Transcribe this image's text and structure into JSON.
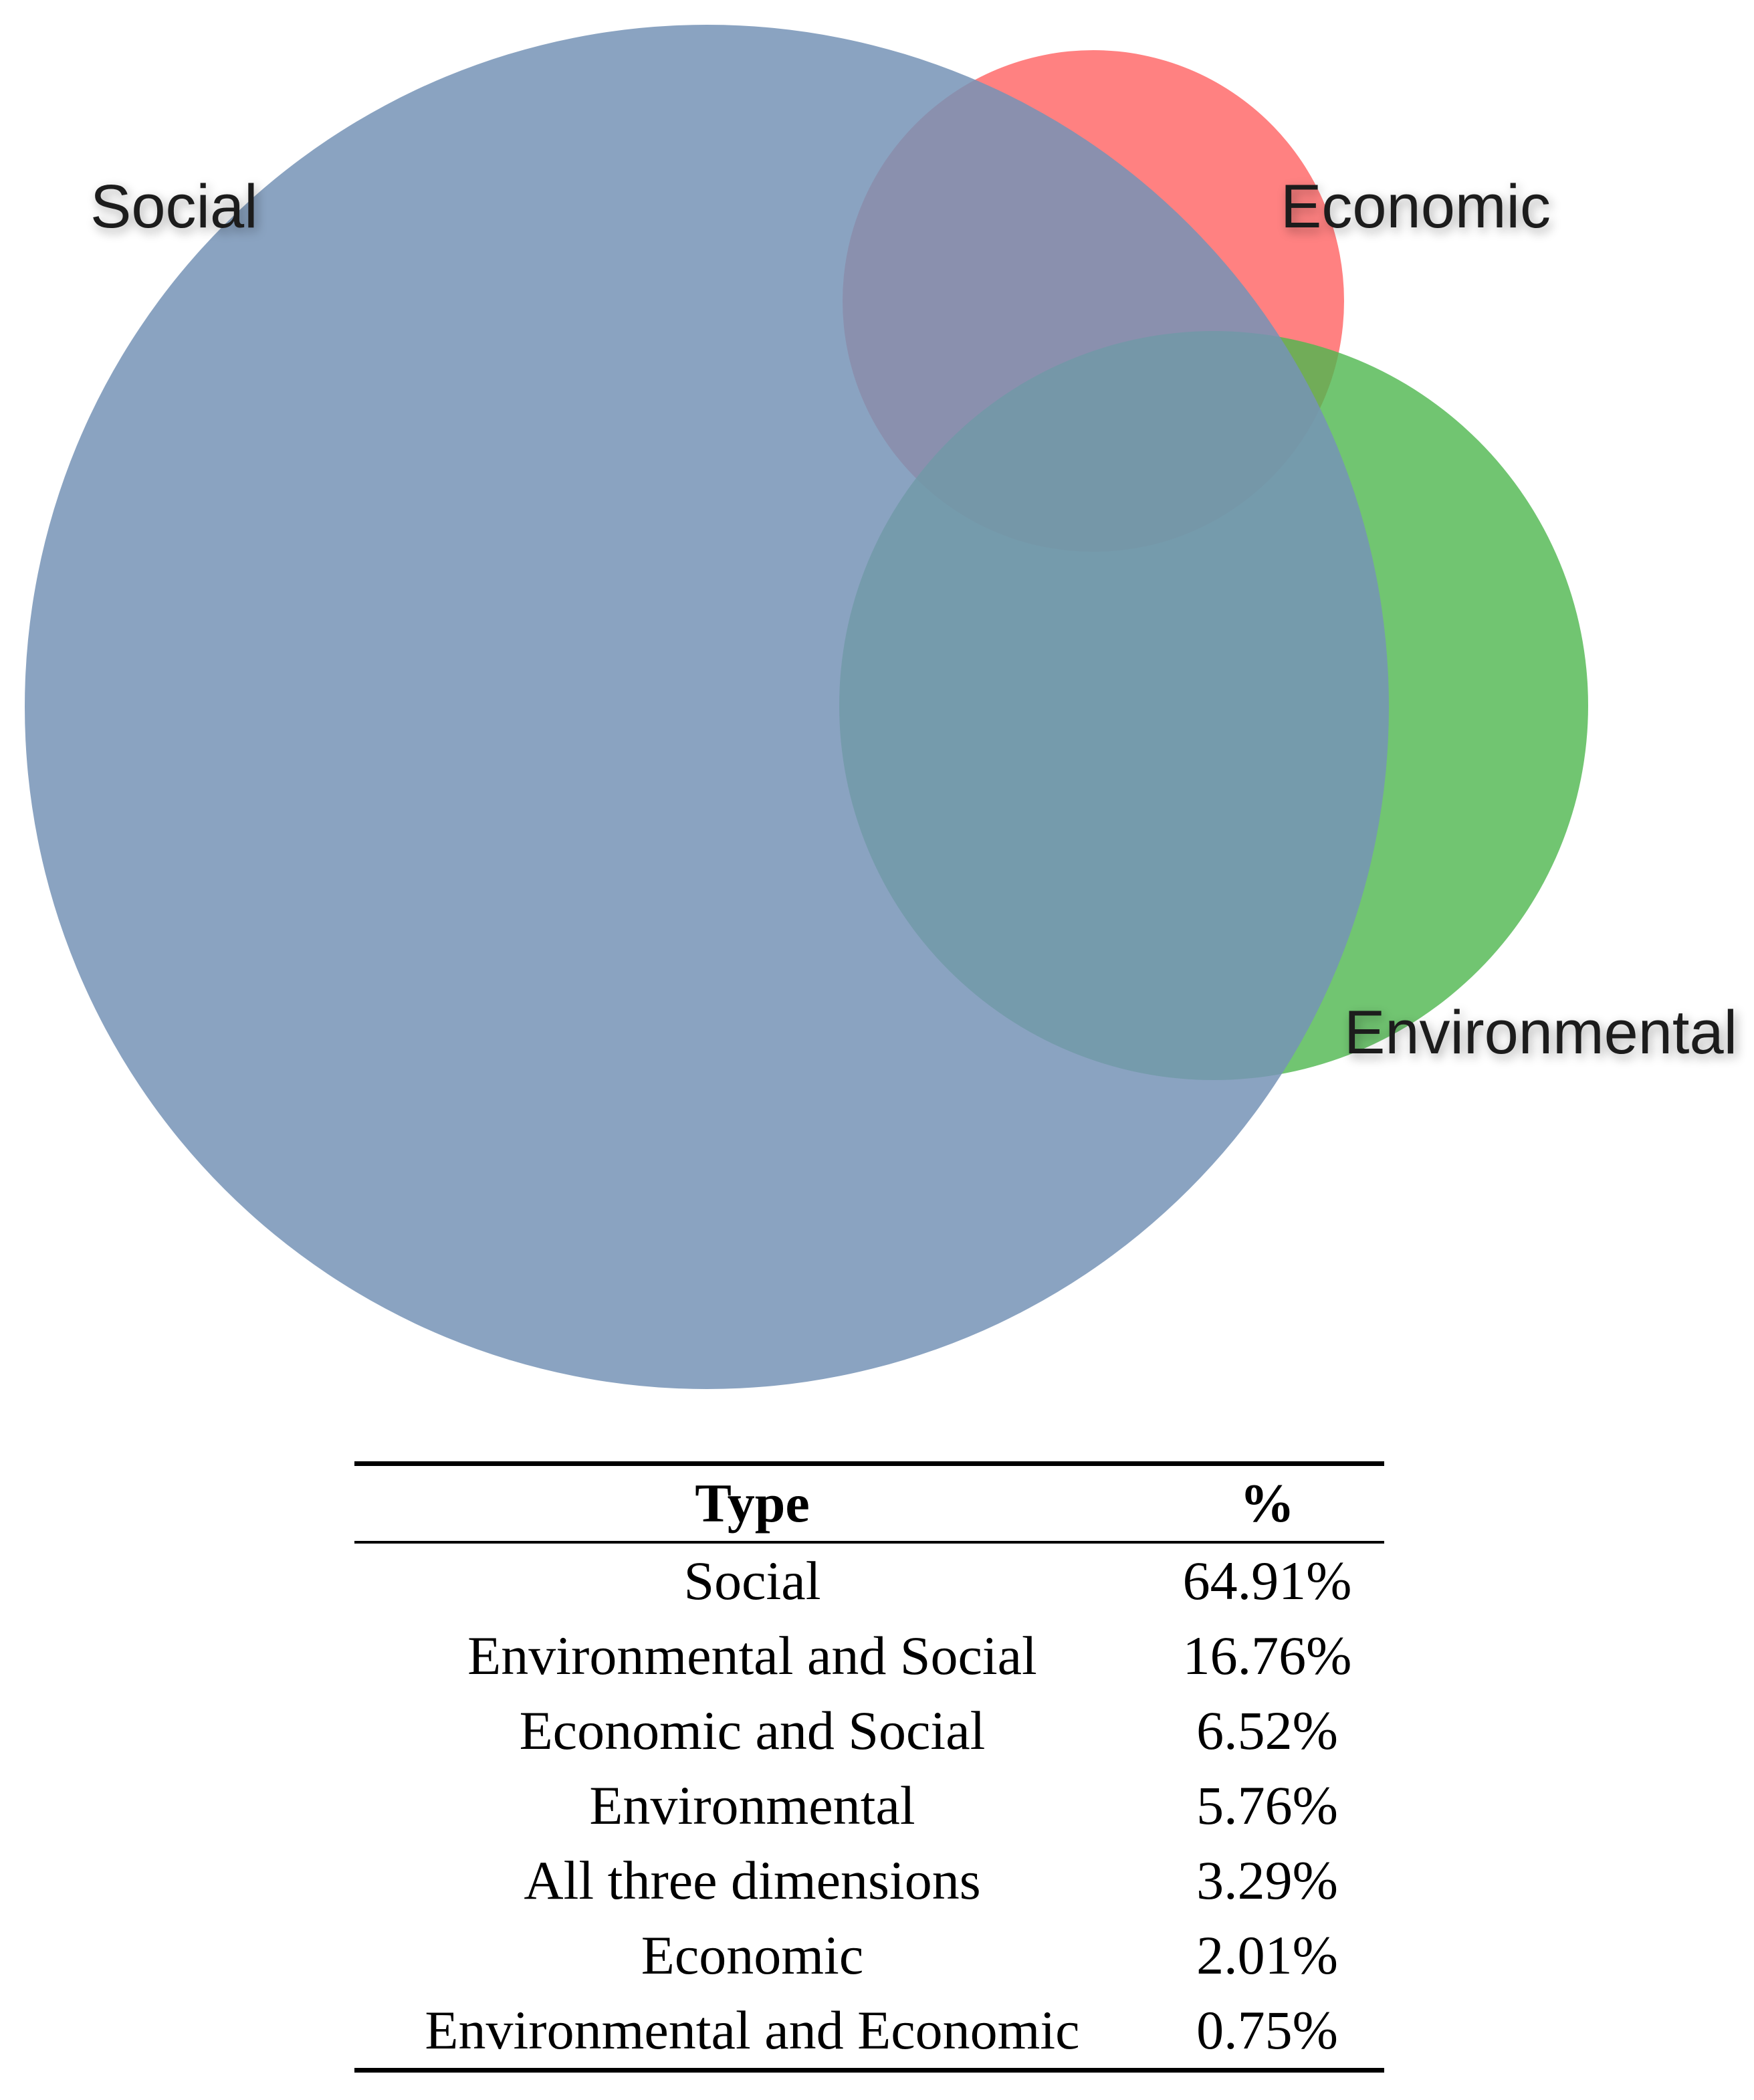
{
  "chart_data": [
    {
      "type": "venn",
      "sets": [
        {
          "name": "Social",
          "color": "#7693b6"
        },
        {
          "name": "Economic",
          "color": "#ff6b6b"
        },
        {
          "name": "Environmental",
          "color": "#4db64d"
        }
      ],
      "labels": {
        "social": "Social",
        "economic": "Economic",
        "environmental": "Environmental"
      }
    },
    {
      "type": "table",
      "headers": {
        "type": "Type",
        "percent": "%"
      },
      "rows": [
        {
          "type": "Social",
          "percent": "64.91%",
          "value": 64.91
        },
        {
          "type": "Environmental and Social",
          "percent": "16.76%",
          "value": 16.76
        },
        {
          "type": "Economic and Social",
          "percent": "6.52%",
          "value": 6.52
        },
        {
          "type": "Environmental",
          "percent": "5.76%",
          "value": 5.76
        },
        {
          "type": "All three dimensions",
          "percent": "3.29%",
          "value": 3.29
        },
        {
          "type": "Economic",
          "percent": "2.01%",
          "value": 2.01
        },
        {
          "type": "Environmental and Economic",
          "percent": "0.75%",
          "value": 0.75
        }
      ]
    }
  ]
}
